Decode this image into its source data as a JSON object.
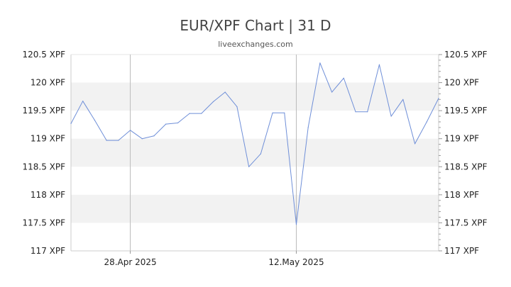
{
  "header": {
    "title": "EUR/XPF Chart | 31 D",
    "source": "liveexchanges.com"
  },
  "colors": {
    "line": "#6f8fd8",
    "band": "#f2f2f2",
    "axis": "#cccccc",
    "marker": "#bbbbbb"
  },
  "chart_data": {
    "type": "line",
    "title": "EUR/XPF Chart | 31 D",
    "xlabel": "",
    "ylabel": "",
    "ylim": [
      117,
      120.5
    ],
    "grid": "alternating horizontal bands",
    "y_ticks": [
      {
        "value": 120.5,
        "label": "120.5 XPF"
      },
      {
        "value": 120,
        "label": "120 XPF"
      },
      {
        "value": 119.5,
        "label": "119.5 XPF"
      },
      {
        "value": 119,
        "label": "119 XPF"
      },
      {
        "value": 118.5,
        "label": "118.5 XPF"
      },
      {
        "value": 118,
        "label": "118 XPF"
      },
      {
        "value": 117.5,
        "label": "117.5 XPF"
      },
      {
        "value": 117,
        "label": "117 XPF"
      }
    ],
    "x_ticks": [
      {
        "index": 5,
        "label": "28.Apr 2025"
      },
      {
        "index": 19,
        "label": "12.May 2025"
      }
    ],
    "series": [
      {
        "values": [
          119.27,
          119.67,
          119.33,
          118.97,
          118.97,
          119.15,
          119.0,
          119.05,
          119.26,
          119.28,
          119.45,
          119.45,
          119.66,
          119.83,
          119.57,
          118.5,
          118.73,
          119.46,
          119.46,
          117.47,
          119.2,
          120.35,
          119.83,
          120.08,
          119.48,
          119.48,
          120.32,
          119.4,
          119.7,
          118.91,
          119.3,
          119.72
        ]
      }
    ]
  }
}
